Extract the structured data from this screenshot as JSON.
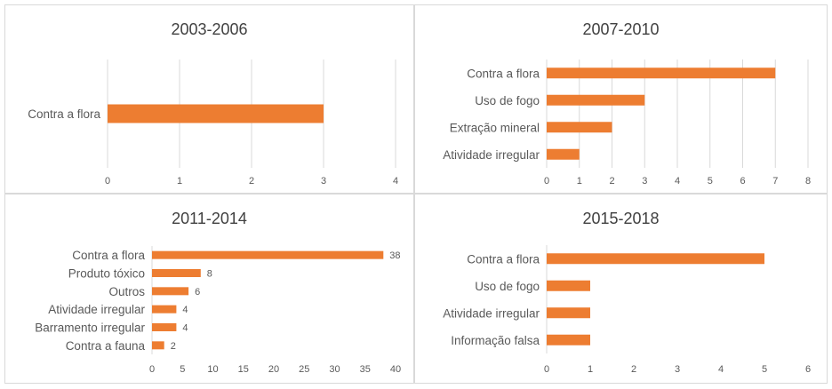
{
  "colors": {
    "bar": "#ED7D31",
    "grid": "#D9D9D9",
    "text": "#595959"
  },
  "chart_data": [
    {
      "type": "bar",
      "orientation": "horizontal",
      "title": "2003-2006",
      "categories": [
        "Contra a flora"
      ],
      "values": [
        3
      ],
      "xlim": [
        0,
        4
      ],
      "ticks": [
        0,
        1,
        2,
        3,
        4
      ],
      "data_labels": false,
      "grid": true
    },
    {
      "type": "bar",
      "orientation": "horizontal",
      "title": "2007-2010",
      "categories": [
        "Contra a flora",
        "Uso de fogo",
        "Extração mineral",
        "Atividade irregular"
      ],
      "values": [
        7,
        3,
        2,
        1
      ],
      "xlim": [
        0,
        8
      ],
      "ticks": [
        0,
        1,
        2,
        3,
        4,
        5,
        6,
        7,
        8
      ],
      "data_labels": false,
      "grid": true
    },
    {
      "type": "bar",
      "orientation": "horizontal",
      "title": "2011-2014",
      "categories": [
        "Contra a flora",
        "Produto tóxico",
        "Outros",
        "Atividade irregular",
        "Barramento irregular",
        "Contra a fauna"
      ],
      "values": [
        38,
        8,
        6,
        4,
        4,
        2
      ],
      "xlim": [
        0,
        40
      ],
      "ticks": [
        0,
        5,
        10,
        15,
        20,
        25,
        30,
        35,
        40
      ],
      "data_labels": true,
      "grid": false
    },
    {
      "type": "bar",
      "orientation": "horizontal",
      "title": "2015-2018",
      "categories": [
        "Contra a flora",
        "Uso de fogo",
        "Atividade irregular",
        "Informação falsa"
      ],
      "values": [
        5,
        1,
        1,
        1
      ],
      "xlim": [
        0,
        6
      ],
      "ticks": [
        0,
        1,
        2,
        3,
        4,
        5,
        6
      ],
      "data_labels": false,
      "grid": false
    }
  ]
}
